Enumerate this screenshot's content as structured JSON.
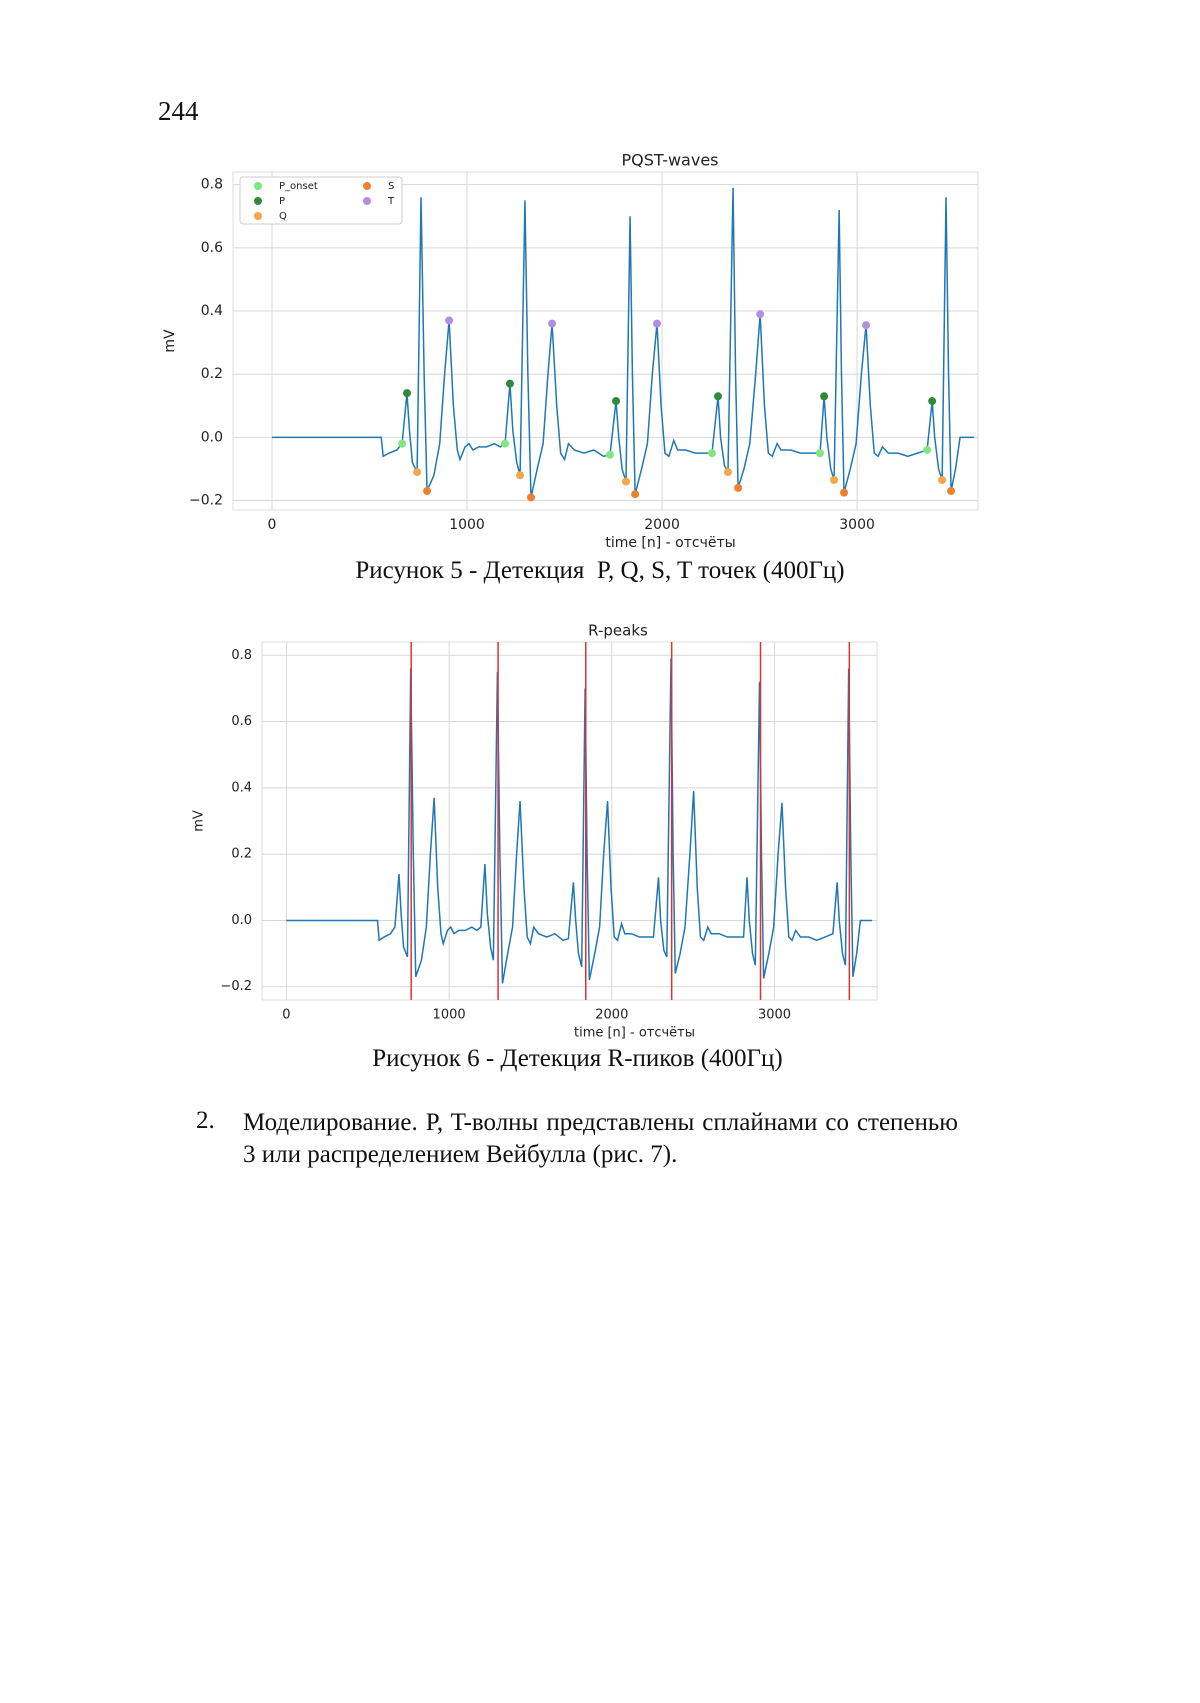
{
  "page_number": "244",
  "chart_data": [
    {
      "type": "line",
      "title": "PQST-waves",
      "xlabel": "time [n] - отсчёты",
      "ylabel": "mV",
      "color": "#1f77b4",
      "x": [
        0,
        560,
        570,
        600,
        640,
        667,
        692,
        705,
        720,
        744,
        764,
        780,
        795,
        830,
        860,
        885,
        908,
        930,
        950,
        964,
        990,
        1010,
        1030,
        1060,
        1100,
        1140,
        1170,
        1195,
        1220,
        1235,
        1255,
        1272,
        1297,
        1312,
        1328,
        1360,
        1390,
        1415,
        1436,
        1460,
        1480,
        1500,
        1520,
        1550,
        1600,
        1650,
        1700,
        1733,
        1764,
        1778,
        1795,
        1815,
        1836,
        1848,
        1862,
        1895,
        1925,
        1950,
        1974,
        1995,
        2015,
        2035,
        2060,
        2080,
        2120,
        2170,
        2220,
        2256,
        2287,
        2300,
        2320,
        2338,
        2364,
        2377,
        2390,
        2420,
        2450,
        2480,
        2503,
        2525,
        2545,
        2565,
        2590,
        2610,
        2660,
        2710,
        2760,
        2810,
        2831,
        2845,
        2865,
        2882,
        2908,
        2920,
        2933,
        2965,
        2995,
        3022,
        3046,
        3068,
        3088,
        3108,
        3130,
        3160,
        3210,
        3260,
        3310,
        3359,
        3385,
        3398,
        3418,
        3436,
        3456,
        3469,
        3482,
        3505,
        3528,
        3600
      ],
      "values": [
        0,
        0,
        -0.06,
        -0.05,
        -0.04,
        -0.02,
        0.14,
        0.02,
        -0.08,
        -0.11,
        0.76,
        0.2,
        -0.17,
        -0.12,
        -0.02,
        0.2,
        0.37,
        0.1,
        -0.04,
        -0.07,
        -0.03,
        -0.02,
        -0.04,
        -0.03,
        -0.03,
        -0.02,
        -0.03,
        -0.02,
        0.17,
        0.02,
        -0.08,
        -0.12,
        0.75,
        0.2,
        -0.19,
        -0.1,
        -0.02,
        0.2,
        0.36,
        0.1,
        -0.05,
        -0.07,
        -0.02,
        -0.04,
        -0.05,
        -0.04,
        -0.06,
        -0.055,
        0.115,
        0,
        -0.1,
        -0.14,
        0.7,
        0.2,
        -0.18,
        -0.1,
        -0.02,
        0.2,
        0.36,
        0.1,
        -0.05,
        -0.06,
        -0.01,
        -0.04,
        -0.04,
        -0.05,
        -0.05,
        -0.05,
        0.13,
        0,
        -0.09,
        -0.11,
        0.79,
        0.2,
        -0.16,
        -0.1,
        -0.02,
        0.2,
        0.39,
        0.1,
        -0.05,
        -0.06,
        -0.02,
        -0.04,
        -0.04,
        -0.05,
        -0.05,
        -0.05,
        0.13,
        0,
        -0.1,
        -0.135,
        0.72,
        0.2,
        -0.175,
        -0.1,
        -0.02,
        0.2,
        0.355,
        0.1,
        -0.05,
        -0.06,
        -0.03,
        -0.05,
        -0.05,
        -0.06,
        -0.05,
        -0.04,
        0.115,
        0,
        -0.1,
        -0.135,
        0.76,
        0.2,
        -0.17,
        -0.1,
        0,
        0
      ],
      "series": [
        {
          "name": "P_onset",
          "color": "#7ee87e",
          "x": [
            667,
            1195,
            1733,
            2256,
            2810,
            3359
          ],
          "values": [
            -0.02,
            -0.02,
            -0.055,
            -0.05,
            -0.05,
            -0.04
          ]
        },
        {
          "name": "P",
          "color": "#2e8b3e",
          "x": [
            692,
            1220,
            1764,
            2287,
            2831,
            3385
          ],
          "values": [
            0.14,
            0.17,
            0.115,
            0.13,
            0.13,
            0.115
          ]
        },
        {
          "name": "Q",
          "color": "#f5a54a",
          "x": [
            744,
            1272,
            1815,
            2338,
            2882,
            3436
          ],
          "values": [
            -0.11,
            -0.12,
            -0.14,
            -0.11,
            -0.135,
            -0.135
          ]
        },
        {
          "name": "S",
          "color": "#f08030",
          "x": [
            795,
            1328,
            1862,
            2390,
            2933,
            3482
          ],
          "values": [
            -0.17,
            -0.19,
            -0.18,
            -0.16,
            -0.175,
            -0.17
          ]
        },
        {
          "name": "T",
          "color": "#b28ee0",
          "x": [
            908,
            1436,
            1974,
            2503,
            3046
          ],
          "values": [
            0.37,
            0.36,
            0.36,
            0.39,
            0.355
          ]
        }
      ],
      "xlim": [
        -200,
        3620
      ],
      "xticks": [
        0,
        1000,
        2000,
        3000
      ],
      "ylim": [
        -0.23,
        0.84
      ],
      "yticks": [
        {
          "value": -0.2,
          "label": "−0.2"
        },
        {
          "value": 0,
          "label": "0.0"
        },
        0.2,
        0.4,
        0.6,
        0.8
      ],
      "grid": true,
      "legend": "upper left"
    },
    {
      "type": "line",
      "title": "R-peaks",
      "xlabel": "time [n] - отсчёты",
      "ylabel": "mV",
      "color": "#1f77b4",
      "x": [
        0,
        560,
        570,
        600,
        640,
        667,
        692,
        705,
        720,
        744,
        764,
        780,
        795,
        830,
        860,
        885,
        908,
        930,
        950,
        964,
        990,
        1010,
        1030,
        1060,
        1100,
        1140,
        1170,
        1195,
        1220,
        1235,
        1255,
        1272,
        1297,
        1312,
        1328,
        1360,
        1390,
        1415,
        1436,
        1460,
        1480,
        1500,
        1520,
        1550,
        1600,
        1650,
        1700,
        1733,
        1764,
        1778,
        1795,
        1815,
        1836,
        1848,
        1862,
        1895,
        1925,
        1950,
        1974,
        1995,
        2015,
        2035,
        2060,
        2080,
        2120,
        2170,
        2220,
        2256,
        2287,
        2300,
        2320,
        2338,
        2364,
        2377,
        2390,
        2420,
        2450,
        2480,
        2503,
        2525,
        2545,
        2565,
        2590,
        2610,
        2660,
        2710,
        2760,
        2810,
        2831,
        2845,
        2865,
        2882,
        2908,
        2920,
        2933,
        2965,
        2995,
        3022,
        3046,
        3068,
        3088,
        3108,
        3130,
        3160,
        3210,
        3260,
        3310,
        3359,
        3385,
        3398,
        3418,
        3436,
        3456,
        3469,
        3482,
        3505,
        3528,
        3600
      ],
      "values": [
        0,
        0,
        -0.06,
        -0.05,
        -0.04,
        -0.02,
        0.14,
        0.02,
        -0.08,
        -0.11,
        0.76,
        0.2,
        -0.17,
        -0.12,
        -0.02,
        0.2,
        0.37,
        0.1,
        -0.04,
        -0.07,
        -0.03,
        -0.02,
        -0.04,
        -0.03,
        -0.03,
        -0.02,
        -0.03,
        -0.02,
        0.17,
        0.02,
        -0.08,
        -0.12,
        0.75,
        0.2,
        -0.19,
        -0.1,
        -0.02,
        0.2,
        0.36,
        0.1,
        -0.05,
        -0.07,
        -0.02,
        -0.04,
        -0.05,
        -0.04,
        -0.06,
        -0.055,
        0.115,
        0,
        -0.1,
        -0.14,
        0.7,
        0.2,
        -0.18,
        -0.1,
        -0.02,
        0.2,
        0.36,
        0.1,
        -0.05,
        -0.06,
        -0.01,
        -0.04,
        -0.04,
        -0.05,
        -0.05,
        -0.05,
        0.13,
        0,
        -0.09,
        -0.11,
        0.79,
        0.2,
        -0.16,
        -0.1,
        -0.02,
        0.2,
        0.39,
        0.1,
        -0.05,
        -0.06,
        -0.02,
        -0.04,
        -0.04,
        -0.05,
        -0.05,
        -0.05,
        0.13,
        0,
        -0.1,
        -0.135,
        0.72,
        0.2,
        -0.175,
        -0.1,
        -0.02,
        0.2,
        0.355,
        0.1,
        -0.05,
        -0.06,
        -0.03,
        -0.05,
        -0.05,
        -0.06,
        -0.05,
        -0.04,
        0.115,
        0,
        -0.1,
        -0.135,
        0.76,
        0.2,
        -0.17,
        -0.1,
        0,
        0
      ],
      "vlines": {
        "color": "#e03030",
        "x": [
          767,
          1301,
          1840,
          2368,
          2914,
          3460
        ]
      },
      "xlim": [
        -150,
        3630
      ],
      "xticks": [
        0,
        1000,
        2000,
        3000
      ],
      "ylim": [
        -0.24,
        0.84
      ],
      "yticks": [
        {
          "value": -0.2,
          "label": "−0.2"
        },
        {
          "value": 0,
          "label": "0.0"
        },
        0.2,
        0.4,
        0.6,
        0.8
      ],
      "grid": true
    }
  ],
  "captions": [
    "Рисунок 5 - Детекция  P, Q, S, T точек (400Гц)",
    "Рисунок 6 - Детекция R-пиков (400Гц)"
  ],
  "paragraph": {
    "number": "2.",
    "text": "Моделирование. P, T-волны представлены сплайнами со степенью 3 или распределением Вейбулла (рис. 7)."
  }
}
